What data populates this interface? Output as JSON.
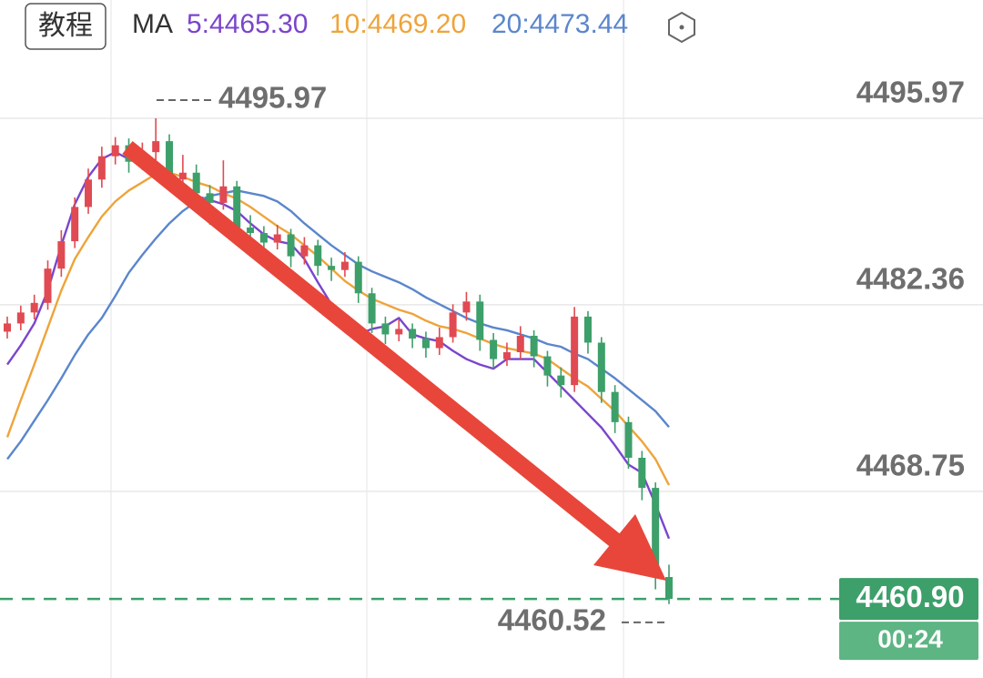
{
  "chart_data": {
    "type": "candlestick",
    "tab": "教程",
    "ma_title": "MA",
    "candles": {
      "open": [
        4480.4,
        4481.0,
        4481.8,
        4482.5,
        4485.0,
        4487.0,
        4489.5,
        4491.5,
        4493.2,
        4494.0,
        4492.8,
        4493.5,
        4494.3,
        4491.5,
        4492.0,
        4490.5,
        4489.8,
        4491.0,
        4488.0,
        4487.6,
        4486.9,
        4487.5,
        4485.9,
        4486.7,
        4485.2,
        4484.9,
        4485.5,
        4483.2,
        4481.0,
        4480.2,
        4480.6,
        4479.9,
        4479.2,
        4480.0,
        4481.8,
        4482.6,
        4479.8,
        4478.4,
        4478.9,
        4480.1,
        4478.6,
        4477.2,
        4476.5,
        4481.5,
        4479.6,
        4476.0,
        4473.8,
        4471.2,
        4469.0,
        4462.5
      ],
      "high": [
        4481.5,
        4482.3,
        4483.1,
        4485.6,
        4487.8,
        4490.2,
        4492.3,
        4493.9,
        4494.6,
        4494.5,
        4494.2,
        4495.97,
        4494.8,
        4493.3,
        4492.6,
        4491.1,
        4492.9,
        4491.4,
        4488.9,
        4488.1,
        4488.2,
        4487.9,
        4487.3,
        4487.1,
        4485.8,
        4486.2,
        4485.9,
        4483.6,
        4481.5,
        4481.3,
        4481.0,
        4480.4,
        4480.7,
        4482.4,
        4483.3,
        4483.1,
        4480.3,
        4479.6,
        4480.8,
        4480.5,
        4479.0,
        4477.8,
        4482.2,
        4481.9,
        4480.0,
        4476.5,
        4474.2,
        4471.7,
        4469.4,
        4463.4
      ],
      "low": [
        4479.9,
        4480.5,
        4481.3,
        4482.0,
        4484.4,
        4486.5,
        4489.0,
        4490.9,
        4492.6,
        4492.0,
        4492.2,
        4492.9,
        4490.8,
        4490.9,
        4489.6,
        4488.2,
        4489.3,
        4487.2,
        4486.8,
        4486.0,
        4486.4,
        4485.1,
        4485.3,
        4484.5,
        4484.1,
        4484.4,
        4482.5,
        4480.3,
        4479.5,
        4479.7,
        4479.2,
        4478.5,
        4478.7,
        4479.6,
        4481.2,
        4479.0,
        4477.7,
        4477.9,
        4478.4,
        4477.8,
        4476.4,
        4475.6,
        4476.0,
        4478.8,
        4475.2,
        4473.0,
        4470.4,
        4468.1,
        4461.6,
        4460.52
      ],
      "close": [
        4481.0,
        4481.8,
        4482.5,
        4485.0,
        4487.0,
        4489.5,
        4491.5,
        4493.2,
        4494.0,
        4492.8,
        4493.5,
        4494.3,
        4491.5,
        4492.0,
        4490.5,
        4489.8,
        4491.0,
        4488.0,
        4487.6,
        4486.9,
        4487.5,
        4485.9,
        4486.7,
        4485.2,
        4484.9,
        4485.5,
        4483.2,
        4481.0,
        4480.2,
        4480.6,
        4479.9,
        4479.2,
        4480.0,
        4481.8,
        4482.6,
        4479.8,
        4478.4,
        4478.9,
        4480.1,
        4478.6,
        4477.2,
        4476.5,
        4481.5,
        4479.6,
        4476.0,
        4473.8,
        4471.2,
        4469.0,
        4462.5,
        4460.9
      ]
    },
    "up_color": "#e04a52",
    "down_color": "#3d9f6a",
    "series": [
      {
        "name": "5",
        "label": "5:4465.30",
        "color": "#7a45cc",
        "values": [
          4478.0,
          4479.4,
          4481.0,
          4483.4,
          4486.7,
          4489.7,
          4491.7,
          4493.0,
          4493.5,
          4493.0,
          4492.7,
          4492.5,
          4491.7,
          4491.0,
          4490.3,
          4490.0,
          4489.7,
          4489.2,
          4488.3,
          4487.5,
          4487.0,
          4486.8,
          4485.7,
          4484.0,
          4482.4,
          4481.0,
          4480.2,
          4480.6,
          4480.8,
          4481.4,
          4480.2,
          4479.9,
          4479.7,
          4479.0,
          4478.4,
          4478.0,
          4477.7,
          4478.4,
          4478.4,
          4478.4,
          4477.4,
          4476.4,
          4475.4,
          4474.4,
          4473.4,
          4472.1,
          4470.7,
          4470.1,
          4467.8,
          4465.3
        ]
      },
      {
        "name": "10",
        "label": "10:4469.20",
        "color": "#eea43a",
        "values": [
          4472.7,
          4475.4,
          4478.0,
          4480.7,
          4483.4,
          4485.7,
          4487.3,
          4488.8,
          4489.9,
          4490.7,
          4491.3,
          4491.9,
          4492.0,
          4491.7,
          4491.3,
          4491.0,
          4490.5,
          4490.1,
          4489.5,
          4488.8,
          4488.1,
          4487.5,
          4486.7,
          4485.9,
          4485.0,
          4484.1,
          4483.4,
          4482.8,
          4482.4,
          4482.0,
          4481.7,
          4481.2,
          4480.8,
          4480.6,
          4480.3,
          4479.9,
          4479.5,
          4479.2,
          4479.0,
          4478.8,
          4478.4,
          4477.7,
          4477.0,
          4476.4,
          4475.5,
          4474.6,
          4473.5,
          4472.4,
          4471.1,
          4469.2
        ]
      },
      {
        "name": "20",
        "label": "20:4473.44",
        "color": "#5a86cc",
        "values": [
          4471.1,
          4472.4,
          4473.9,
          4475.4,
          4477.0,
          4478.7,
          4480.2,
          4481.4,
          4483.0,
          4484.7,
          4486.0,
          4487.2,
          4488.3,
          4489.2,
          4489.9,
          4490.3,
          4490.5,
          4490.7,
          4490.5,
          4490.3,
          4489.9,
          4489.2,
          4488.3,
          4487.5,
          4486.7,
          4486.0,
          4485.3,
          4484.8,
          4484.4,
          4484.0,
          4483.5,
          4482.9,
          4482.4,
          4481.9,
          4481.4,
          4481.0,
          4480.7,
          4480.5,
          4480.2,
          4479.9,
          4479.5,
          4479.3,
          4478.8,
          4478.4,
          4477.7,
          4477.0,
          4476.2,
          4475.4,
          4474.6,
          4473.44
        ]
      }
    ],
    "ylim": [
      4455.13,
      4504.6
    ],
    "yticks": [
      4495.97,
      4482.36,
      4468.75
    ],
    "grid": true,
    "high_marker": 4495.97,
    "low_marker": 4460.52,
    "last_price": {
      "value": 4460.9,
      "label": "4460.90"
    },
    "countdown": "00:24"
  }
}
